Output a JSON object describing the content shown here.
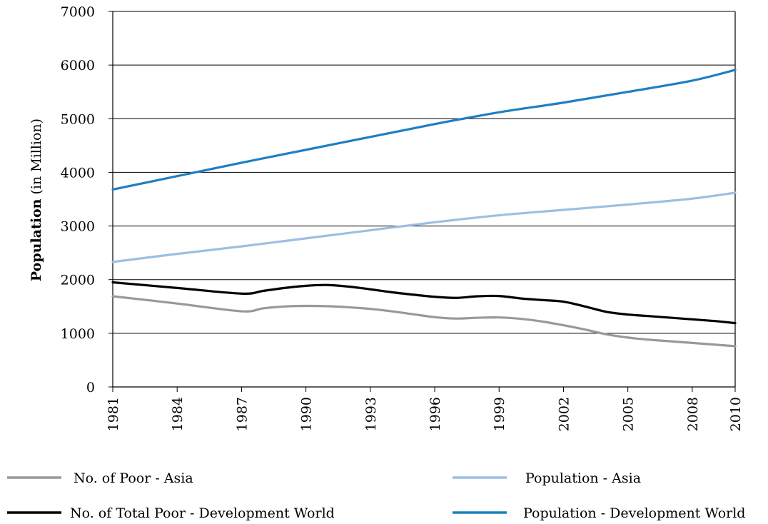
{
  "chart_data": {
    "type": "line",
    "title": "",
    "ylabel": {
      "bold": "Population",
      "normal": "(in Million)"
    },
    "xlabel": "",
    "ylim": [
      0,
      7000
    ],
    "yticks": [
      0,
      1000,
      2000,
      3000,
      4000,
      5000,
      6000,
      7000
    ],
    "xlim": [
      1981,
      2010
    ],
    "xticks": [
      1981,
      1984,
      1987,
      1990,
      1993,
      1996,
      1999,
      2002,
      2005,
      2008,
      2010
    ],
    "grid": "horizontal",
    "legend_position": "bottom",
    "series": [
      {
        "name": "No. of Poor - Asia",
        "color": "#999999",
        "x": [
          1981,
          1984,
          1987,
          1988,
          1989,
          1990,
          1991,
          1992,
          1993,
          1994,
          1995,
          1996,
          1997,
          1998,
          1999,
          2000,
          2001,
          2002,
          2003,
          2004,
          2005,
          2006,
          2007,
          2008,
          2009,
          2010
        ],
        "y": [
          1690,
          1555,
          1410,
          1465,
          1500,
          1510,
          1505,
          1485,
          1455,
          1410,
          1355,
          1300,
          1275,
          1290,
          1295,
          1270,
          1220,
          1150,
          1070,
          980,
          920,
          880,
          850,
          820,
          790,
          760
        ]
      },
      {
        "name": "Population - Asia",
        "color": "#9dbfe3",
        "x": [
          1981,
          1984,
          1987,
          1990,
          1993,
          1996,
          1999,
          2002,
          2005,
          2008,
          2010
        ],
        "y": [
          2330,
          2480,
          2620,
          2770,
          2920,
          3070,
          3200,
          3300,
          3400,
          3510,
          3620
        ]
      },
      {
        "name": "No. of Total Poor - Development World",
        "color": "#000000",
        "x": [
          1981,
          1984,
          1987,
          1988,
          1989,
          1990,
          1991,
          1992,
          1993,
          1994,
          1995,
          1996,
          1997,
          1998,
          1999,
          2000,
          2001,
          2002,
          2003,
          2004,
          2005,
          2006,
          2007,
          2008,
          2009,
          2010
        ],
        "y": [
          1950,
          1845,
          1740,
          1790,
          1845,
          1885,
          1900,
          1870,
          1820,
          1765,
          1720,
          1680,
          1660,
          1690,
          1695,
          1650,
          1620,
          1590,
          1500,
          1400,
          1350,
          1320,
          1290,
          1260,
          1230,
          1190
        ]
      },
      {
        "name": "Population - Development World",
        "color": "#1f7fc1",
        "x": [
          1981,
          1984,
          1987,
          1990,
          1993,
          1996,
          1999,
          2002,
          2005,
          2008,
          2010
        ],
        "y": [
          3680,
          3930,
          4180,
          4420,
          4660,
          4900,
          5120,
          5300,
          5500,
          5710,
          5910
        ]
      }
    ]
  }
}
